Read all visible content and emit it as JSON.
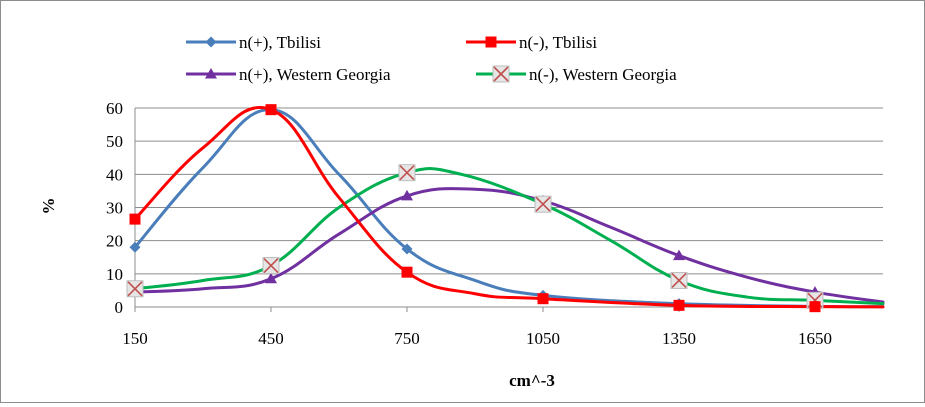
{
  "chart_data": {
    "type": "line",
    "title": "",
    "xlabel": "cm^-3",
    "ylabel": "%",
    "xlim": [
      150,
      1800
    ],
    "ylim": [
      0,
      60
    ],
    "xticks": [
      "150",
      "450",
      "750",
      "1050",
      "1350",
      "1650"
    ],
    "yticks": [
      "0",
      "10",
      "20",
      "30",
      "40",
      "50",
      "60"
    ],
    "grid": "horizontal",
    "legend_position": "top",
    "x": [
      150,
      450,
      750,
      1050,
      1350,
      1650
    ],
    "series": [
      {
        "name": "n(+), Tbilisi",
        "color": "#4a7ebb",
        "marker": "diamond",
        "points": [
          [
            150,
            18
          ],
          [
            300,
            42
          ],
          [
            450,
            59.5
          ],
          [
            600,
            40
          ],
          [
            750,
            17.5
          ],
          [
            900,
            8
          ],
          [
            1050,
            3.5
          ],
          [
            1350,
            1
          ],
          [
            1650,
            0.2
          ],
          [
            1800,
            0.1
          ]
        ],
        "marker_values": [
          18,
          59.5,
          17.5,
          3.5,
          1,
          0.2
        ]
      },
      {
        "name": "n(-), Tbilisi",
        "color": "#ff0000",
        "marker": "square",
        "points": [
          [
            150,
            26.5
          ],
          [
            300,
            48
          ],
          [
            450,
            59.5
          ],
          [
            600,
            33
          ],
          [
            750,
            10.5
          ],
          [
            900,
            4
          ],
          [
            1050,
            2.5
          ],
          [
            1350,
            0.5
          ],
          [
            1650,
            0.1
          ],
          [
            1800,
            0.05
          ]
        ],
        "marker_values": [
          26.5,
          59.5,
          10.5,
          2.5,
          0.5,
          0.1
        ]
      },
      {
        "name": "n(+), Western Georgia",
        "color": "#7030a0",
        "marker": "triangle",
        "points": [
          [
            150,
            4.5
          ],
          [
            300,
            5.5
          ],
          [
            450,
            8.5
          ],
          [
            600,
            22
          ],
          [
            750,
            33.5
          ],
          [
            900,
            35.5
          ],
          [
            1050,
            32
          ],
          [
            1200,
            24
          ],
          [
            1350,
            15.5
          ],
          [
            1500,
            9
          ],
          [
            1650,
            4.5
          ],
          [
            1800,
            1.5
          ]
        ],
        "marker_values": [
          4.5,
          8.5,
          33.5,
          32,
          15.5,
          4.5
        ]
      },
      {
        "name": "n(-), Western Georgia",
        "color": "#00b050",
        "marker": "x",
        "points": [
          [
            150,
            5.5
          ],
          [
            300,
            8
          ],
          [
            450,
            12.5
          ],
          [
            600,
            30
          ],
          [
            750,
            40.5
          ],
          [
            870,
            40
          ],
          [
            1050,
            31
          ],
          [
            1200,
            20
          ],
          [
            1350,
            8
          ],
          [
            1500,
            3
          ],
          [
            1650,
            2
          ],
          [
            1800,
            1
          ]
        ],
        "marker_values": [
          5.5,
          12.5,
          40.5,
          31,
          8,
          2
        ]
      }
    ]
  }
}
